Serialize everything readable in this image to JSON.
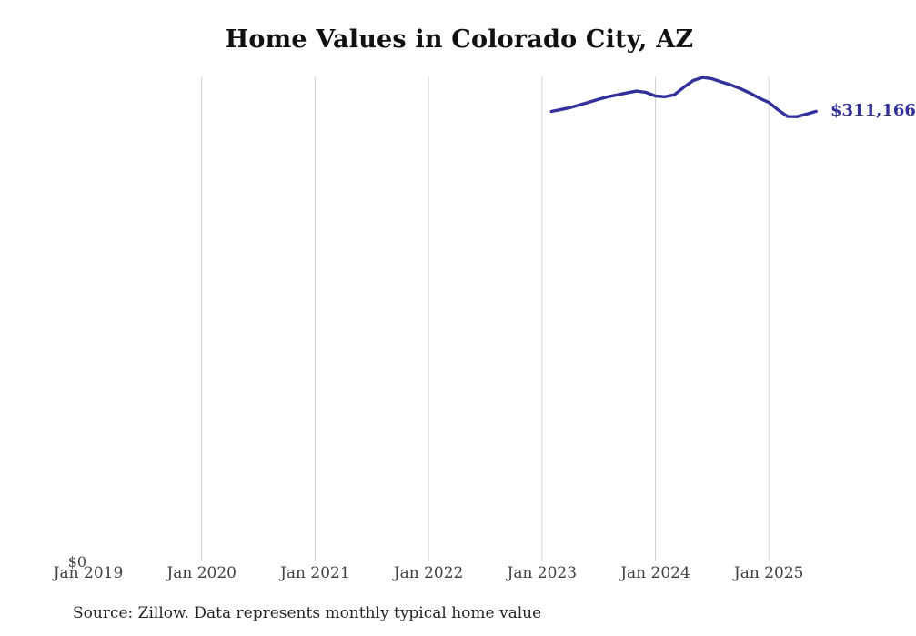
{
  "footer": {
    "source_note": "Source: Zillow. Data represents monthly typical home value"
  },
  "chart_data": {
    "type": "line",
    "title": "Home Values in Colorado City, AZ",
    "xlabel": "",
    "ylabel": "",
    "x_tick_labels": [
      "Jan 2019",
      "Jan 2020",
      "Jan 2021",
      "Jan 2022",
      "Jan 2023",
      "Jan 2024",
      "Jan 2025"
    ],
    "y_tick_labels": [
      "$0"
    ],
    "ylim": [
      0,
      335000
    ],
    "x_axis_range": [
      "2019-01",
      "2025-08"
    ],
    "grid": "vertical-yearly",
    "gridline_years": [
      2020,
      2021,
      2022,
      2023,
      2024,
      2025
    ],
    "legend": "none",
    "line_color": "#33319c",
    "end_label": "$311,166",
    "end_label_color": "#31309a",
    "series": [
      {
        "name": "Typical home value",
        "x": [
          "2023-02",
          "2023-03",
          "2023-04",
          "2023-05",
          "2023-06",
          "2023-07",
          "2023-08",
          "2023-09",
          "2023-10",
          "2023-11",
          "2023-12",
          "2024-01",
          "2024-02",
          "2024-03",
          "2024-04",
          "2024-05",
          "2024-06",
          "2024-07",
          "2024-08",
          "2024-09",
          "2024-10",
          "2024-11",
          "2024-12",
          "2025-01",
          "2025-02",
          "2025-03",
          "2025-04",
          "2025-05",
          "2025-06"
        ],
        "values": [
          311100,
          312400,
          313800,
          315700,
          317600,
          319500,
          321300,
          322600,
          323900,
          325200,
          324300,
          321800,
          321300,
          322600,
          327800,
          332500,
          334600,
          333700,
          331500,
          329400,
          326900,
          323800,
          320300,
          317300,
          312100,
          307600,
          307500,
          309300,
          311166
        ]
      }
    ]
  }
}
